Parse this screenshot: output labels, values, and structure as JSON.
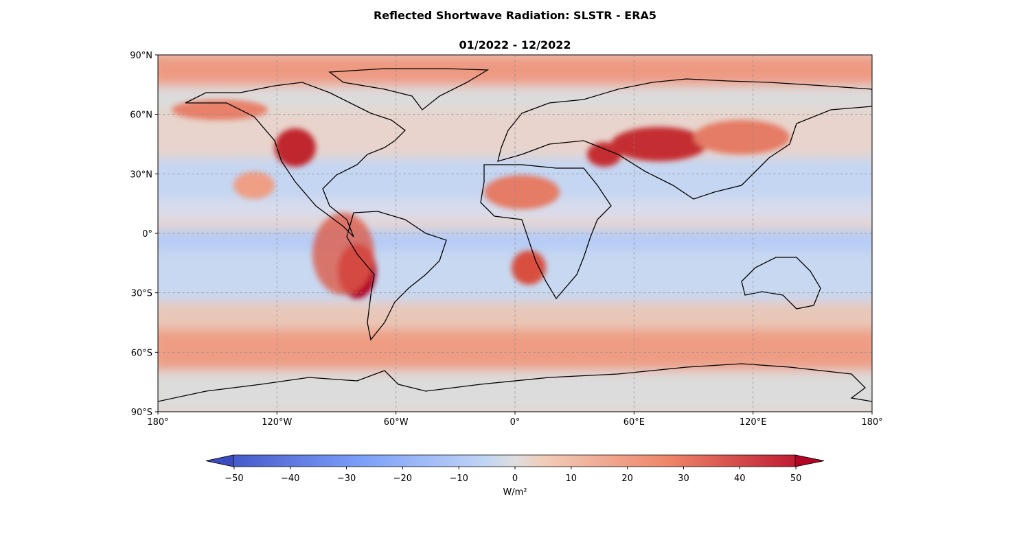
{
  "chart_data": {
    "type": "heatmap",
    "title": "Reflected Shortwave Radiation: SLSTR - ERA5",
    "subtitle": "01/2022 - 12/2022",
    "map_projection": "PlateCarree",
    "grid": true,
    "xlim": [
      -180,
      180
    ],
    "ylim": [
      -90,
      90
    ],
    "x_ticks": [
      {
        "value": -180,
        "label": "180°"
      },
      {
        "value": -120,
        "label": "120°W"
      },
      {
        "value": -60,
        "label": "60°W"
      },
      {
        "value": 0,
        "label": "0°"
      },
      {
        "value": 60,
        "label": "60°E"
      },
      {
        "value": 120,
        "label": "120°E"
      },
      {
        "value": 180,
        "label": "180°"
      }
    ],
    "y_ticks": [
      {
        "value": 90,
        "label": "90°N"
      },
      {
        "value": 60,
        "label": "60°N"
      },
      {
        "value": 30,
        "label": "30°N"
      },
      {
        "value": 0,
        "label": "0°"
      },
      {
        "value": -30,
        "label": "30°S"
      },
      {
        "value": -60,
        "label": "60°S"
      },
      {
        "value": -90,
        "label": "90°S"
      }
    ],
    "colorbar": {
      "colormap": "coolwarm",
      "range": [
        -55,
        55
      ],
      "extend": "both",
      "ticks": [
        {
          "value": -50,
          "label": "−50"
        },
        {
          "value": -40,
          "label": "−40"
        },
        {
          "value": -30,
          "label": "−30"
        },
        {
          "value": -20,
          "label": "−20"
        },
        {
          "value": -10,
          "label": "−10"
        },
        {
          "value": 0,
          "label": "0"
        },
        {
          "value": 10,
          "label": "10"
        },
        {
          "value": 20,
          "label": "20"
        },
        {
          "value": 30,
          "label": "30"
        },
        {
          "value": 40,
          "label": "40"
        },
        {
          "value": 50,
          "label": "50"
        }
      ],
      "label": "W/m²"
    },
    "colors": {
      "blue": "#3b4cc0",
      "neutral": "#dddddd",
      "red": "#b40426"
    }
  }
}
